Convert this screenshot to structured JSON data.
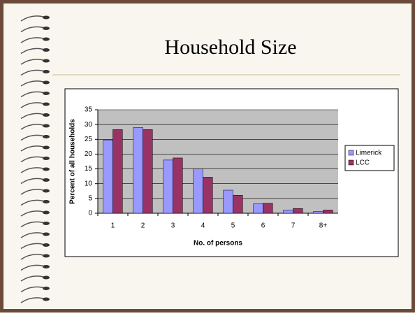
{
  "chart_data": {
    "type": "bar",
    "title": "Household Size",
    "xlabel": "No. of persons",
    "ylabel": "Percent of all households",
    "categories": [
      "1",
      "2",
      "3",
      "4",
      "5",
      "6",
      "7",
      "8+"
    ],
    "series": [
      {
        "name": "Limerick",
        "color": "#9999ff",
        "values": [
          24.8,
          29,
          18,
          15,
          7.8,
          3.2,
          1.1,
          0.6
        ]
      },
      {
        "name": "LCC",
        "color": "#993366",
        "values": [
          28.3,
          28.3,
          18.7,
          12.2,
          6.1,
          3.4,
          1.6,
          1.1
        ]
      }
    ],
    "ylim": [
      0,
      35
    ],
    "yticks": [
      0,
      5,
      10,
      15,
      20,
      25,
      30,
      35
    ],
    "grid": true,
    "legend": "right"
  }
}
